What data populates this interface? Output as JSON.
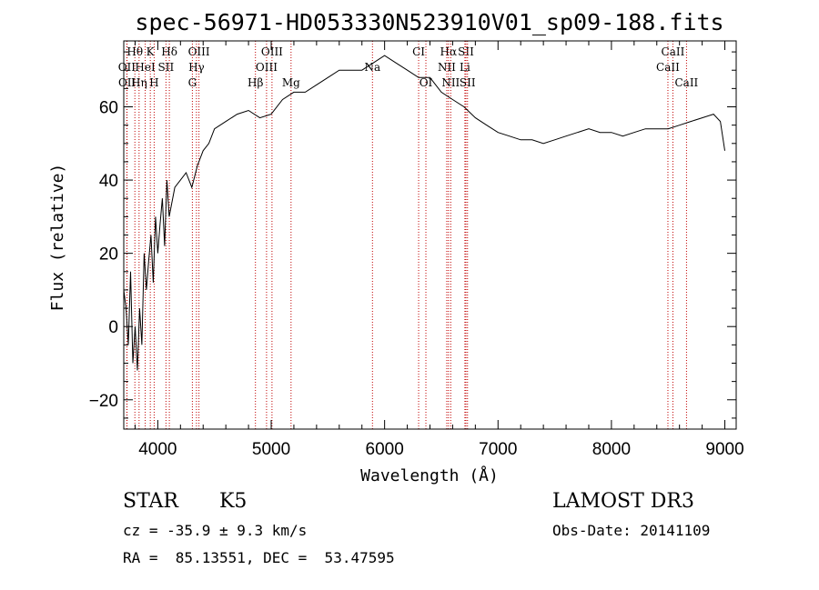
{
  "chart_data": {
    "type": "line",
    "title": "spec-56971-HD053330N523910V01_sp09-188.fits",
    "xlabel": "Wavelength (Å)",
    "ylabel": "Flux (relative)",
    "xlim": [
      3700,
      9100
    ],
    "ylim": [
      -28,
      78
    ],
    "x_ticks": [
      4000,
      5000,
      6000,
      7000,
      8000,
      9000
    ],
    "y_ticks": [
      -20,
      0,
      20,
      40,
      60
    ],
    "grid": false,
    "series": [
      {
        "name": "Flux",
        "x": [
          3700,
          3720,
          3740,
          3760,
          3780,
          3800,
          3820,
          3840,
          3860,
          3880,
          3900,
          3920,
          3940,
          3960,
          3980,
          4000,
          4020,
          4040,
          4060,
          4080,
          4100,
          4150,
          4200,
          4250,
          4300,
          4350,
          4400,
          4450,
          4500,
          4600,
          4700,
          4800,
          4900,
          5000,
          5100,
          5200,
          5300,
          5400,
          5500,
          5600,
          5700,
          5800,
          5900,
          6000,
          6100,
          6200,
          6300,
          6400,
          6500,
          6600,
          6700,
          6800,
          6900,
          7000,
          7100,
          7200,
          7300,
          7400,
          7500,
          7600,
          7700,
          7800,
          7900,
          8000,
          8100,
          8200,
          8300,
          8400,
          8500,
          8600,
          8700,
          8800,
          8900,
          8960,
          9000
        ],
        "values": [
          10,
          5,
          -5,
          15,
          -10,
          0,
          -12,
          5,
          -5,
          20,
          10,
          18,
          25,
          12,
          30,
          20,
          28,
          35,
          22,
          40,
          30,
          38,
          40,
          42,
          38,
          44,
          48,
          50,
          54,
          56,
          58,
          59,
          57,
          58,
          62,
          64,
          64,
          66,
          68,
          70,
          70,
          70,
          72,
          74,
          72,
          70,
          68,
          68,
          64,
          62,
          60,
          57,
          55,
          53,
          52,
          51,
          51,
          50,
          51,
          52,
          53,
          54,
          53,
          53,
          52,
          53,
          54,
          54,
          54,
          55,
          56,
          57,
          58,
          56,
          48
        ]
      }
    ],
    "line_markers": [
      {
        "label": "Hθ",
        "x": 3798,
        "row": 0
      },
      {
        "label": "K",
        "x": 3934,
        "row": 0
      },
      {
        "label": "Hδ",
        "x": 4102,
        "row": 0
      },
      {
        "label": "OIII",
        "x": 4363,
        "row": 0
      },
      {
        "label": "OIII",
        "x": 5007,
        "row": 0
      },
      {
        "label": "CI",
        "x": 6300,
        "row": 0
      },
      {
        "label": "Hα",
        "x": 6563,
        "row": 0
      },
      {
        "label": "SII",
        "x": 6717,
        "row": 0
      },
      {
        "label": "CaII",
        "x": 8542,
        "row": 0
      },
      {
        "label": "OII",
        "x": 3727,
        "row": 1
      },
      {
        "label": "HeI",
        "x": 3889,
        "row": 1
      },
      {
        "label": "SII",
        "x": 4072,
        "row": 1
      },
      {
        "label": "Hγ",
        "x": 4341,
        "row": 1
      },
      {
        "label": "OIII",
        "x": 4959,
        "row": 1
      },
      {
        "label": "Na",
        "x": 5893,
        "row": 1
      },
      {
        "label": "NII",
        "x": 6548,
        "row": 1
      },
      {
        "label": "Li",
        "x": 6708,
        "row": 1
      },
      {
        "label": "CaII",
        "x": 8498,
        "row": 1
      },
      {
        "label": "OII",
        "x": 3729,
        "row": 2
      },
      {
        "label": "Hη",
        "x": 3835,
        "row": 2
      },
      {
        "label": "H",
        "x": 3968,
        "row": 2
      },
      {
        "label": "G",
        "x": 4305,
        "row": 2
      },
      {
        "label": "Hβ",
        "x": 4861,
        "row": 2
      },
      {
        "label": "Mg",
        "x": 5175,
        "row": 2
      },
      {
        "label": "OI",
        "x": 6364,
        "row": 2
      },
      {
        "label": "NII",
        "x": 6583,
        "row": 2
      },
      {
        "label": "SII",
        "x": 6731,
        "row": 2
      },
      {
        "label": "CaII",
        "x": 8662,
        "row": 2
      }
    ]
  },
  "info": {
    "object_type": "STAR",
    "subclass": "K5",
    "survey": "LAMOST DR3",
    "cz": "cz = -35.9 ± 9.3 km/s",
    "obs_date": "Obs-Date: 20141109",
    "radec": "RA =  85.13551, DEC =  53.47595"
  },
  "colors": {
    "line": "#000000",
    "marker": "#c00000",
    "background": "#ffffff"
  }
}
